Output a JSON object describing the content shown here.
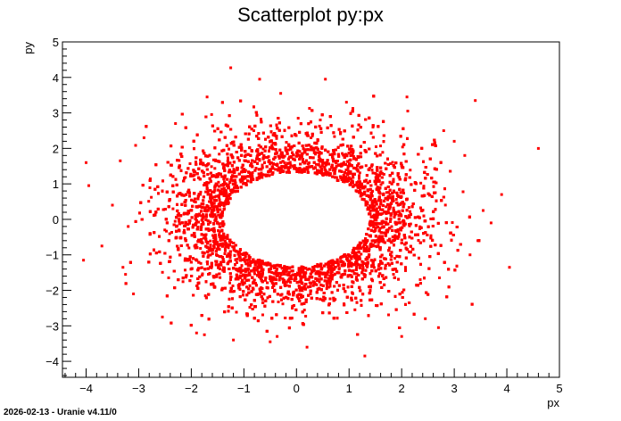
{
  "chart_data": {
    "type": "scatter",
    "title": "Scatterplot py:px",
    "xlabel": "px",
    "ylabel": "py",
    "xlim": [
      -4.45,
      5.0
    ],
    "ylim": [
      -4.45,
      5.0
    ],
    "xticks": [
      -4,
      -3,
      -2,
      -1,
      0,
      1,
      2,
      3,
      4,
      5
    ],
    "yticks": [
      -4,
      -3,
      -2,
      -1,
      0,
      1,
      2,
      3,
      4,
      5
    ],
    "xtick_labels": [
      "−4",
      "−3",
      "−2",
      "−1",
      "0",
      "1",
      "2",
      "3",
      "4",
      "5"
    ],
    "ytick_labels": [
      "−4",
      "−3",
      "−2",
      "−1",
      "0",
      "1",
      "2",
      "3",
      "4",
      "5"
    ],
    "grid": false,
    "marker_color": "#ff0000",
    "series": [
      {
        "points": [
          [
            -1.25,
            4.27
          ],
          [
            -0.7,
            3.95
          ],
          [
            0.55,
            3.95
          ],
          [
            -1.7,
            3.45
          ],
          [
            2.1,
            3.45
          ],
          [
            3.4,
            3.35
          ],
          [
            4.6,
            2.0
          ],
          [
            -4.0,
            1.6
          ],
          [
            -3.35,
            1.65
          ],
          [
            -3.95,
            0.95
          ],
          [
            -3.7,
            -0.75
          ],
          [
            -4.05,
            -1.15
          ],
          [
            -3.3,
            -1.35
          ],
          [
            -3.25,
            -1.55
          ],
          [
            3.55,
            0.25
          ],
          [
            3.9,
            0.7
          ],
          [
            3.7,
            -0.1
          ],
          [
            3.3,
            -1.0
          ],
          [
            4.05,
            -1.35
          ],
          [
            2.7,
            -3.05
          ],
          [
            1.3,
            -3.85
          ],
          [
            -0.5,
            -3.45
          ],
          [
            -1.75,
            -3.25
          ],
          [
            -1.9,
            -3.2
          ],
          [
            -3.1,
            -2.1
          ],
          [
            3.0,
            2.2
          ],
          [
            -2.9,
            2.3
          ],
          [
            -2.3,
            2.7
          ],
          [
            2.8,
            2.5
          ],
          [
            3.2,
            1.8
          ],
          [
            -3.2,
            -0.2
          ],
          [
            3.45,
            -0.6
          ],
          [
            -0.3,
            3.55
          ],
          [
            0.95,
            3.3
          ],
          [
            -2.55,
            -2.75
          ],
          [
            2.45,
            -2.8
          ],
          [
            -1.2,
            -3.4
          ],
          [
            0.2,
            -3.6
          ],
          [
            2.0,
            -3.3
          ],
          [
            -3.5,
            0.4
          ]
        ],
        "generated_ring": {
          "center": [
            0.0,
            0.0
          ],
          "inner_radius_x": 1.38,
          "inner_radius_y": 1.33,
          "point_count": 9000
        }
      }
    ]
  },
  "footer": "2026-02-13 - Uranie v4.11/0"
}
